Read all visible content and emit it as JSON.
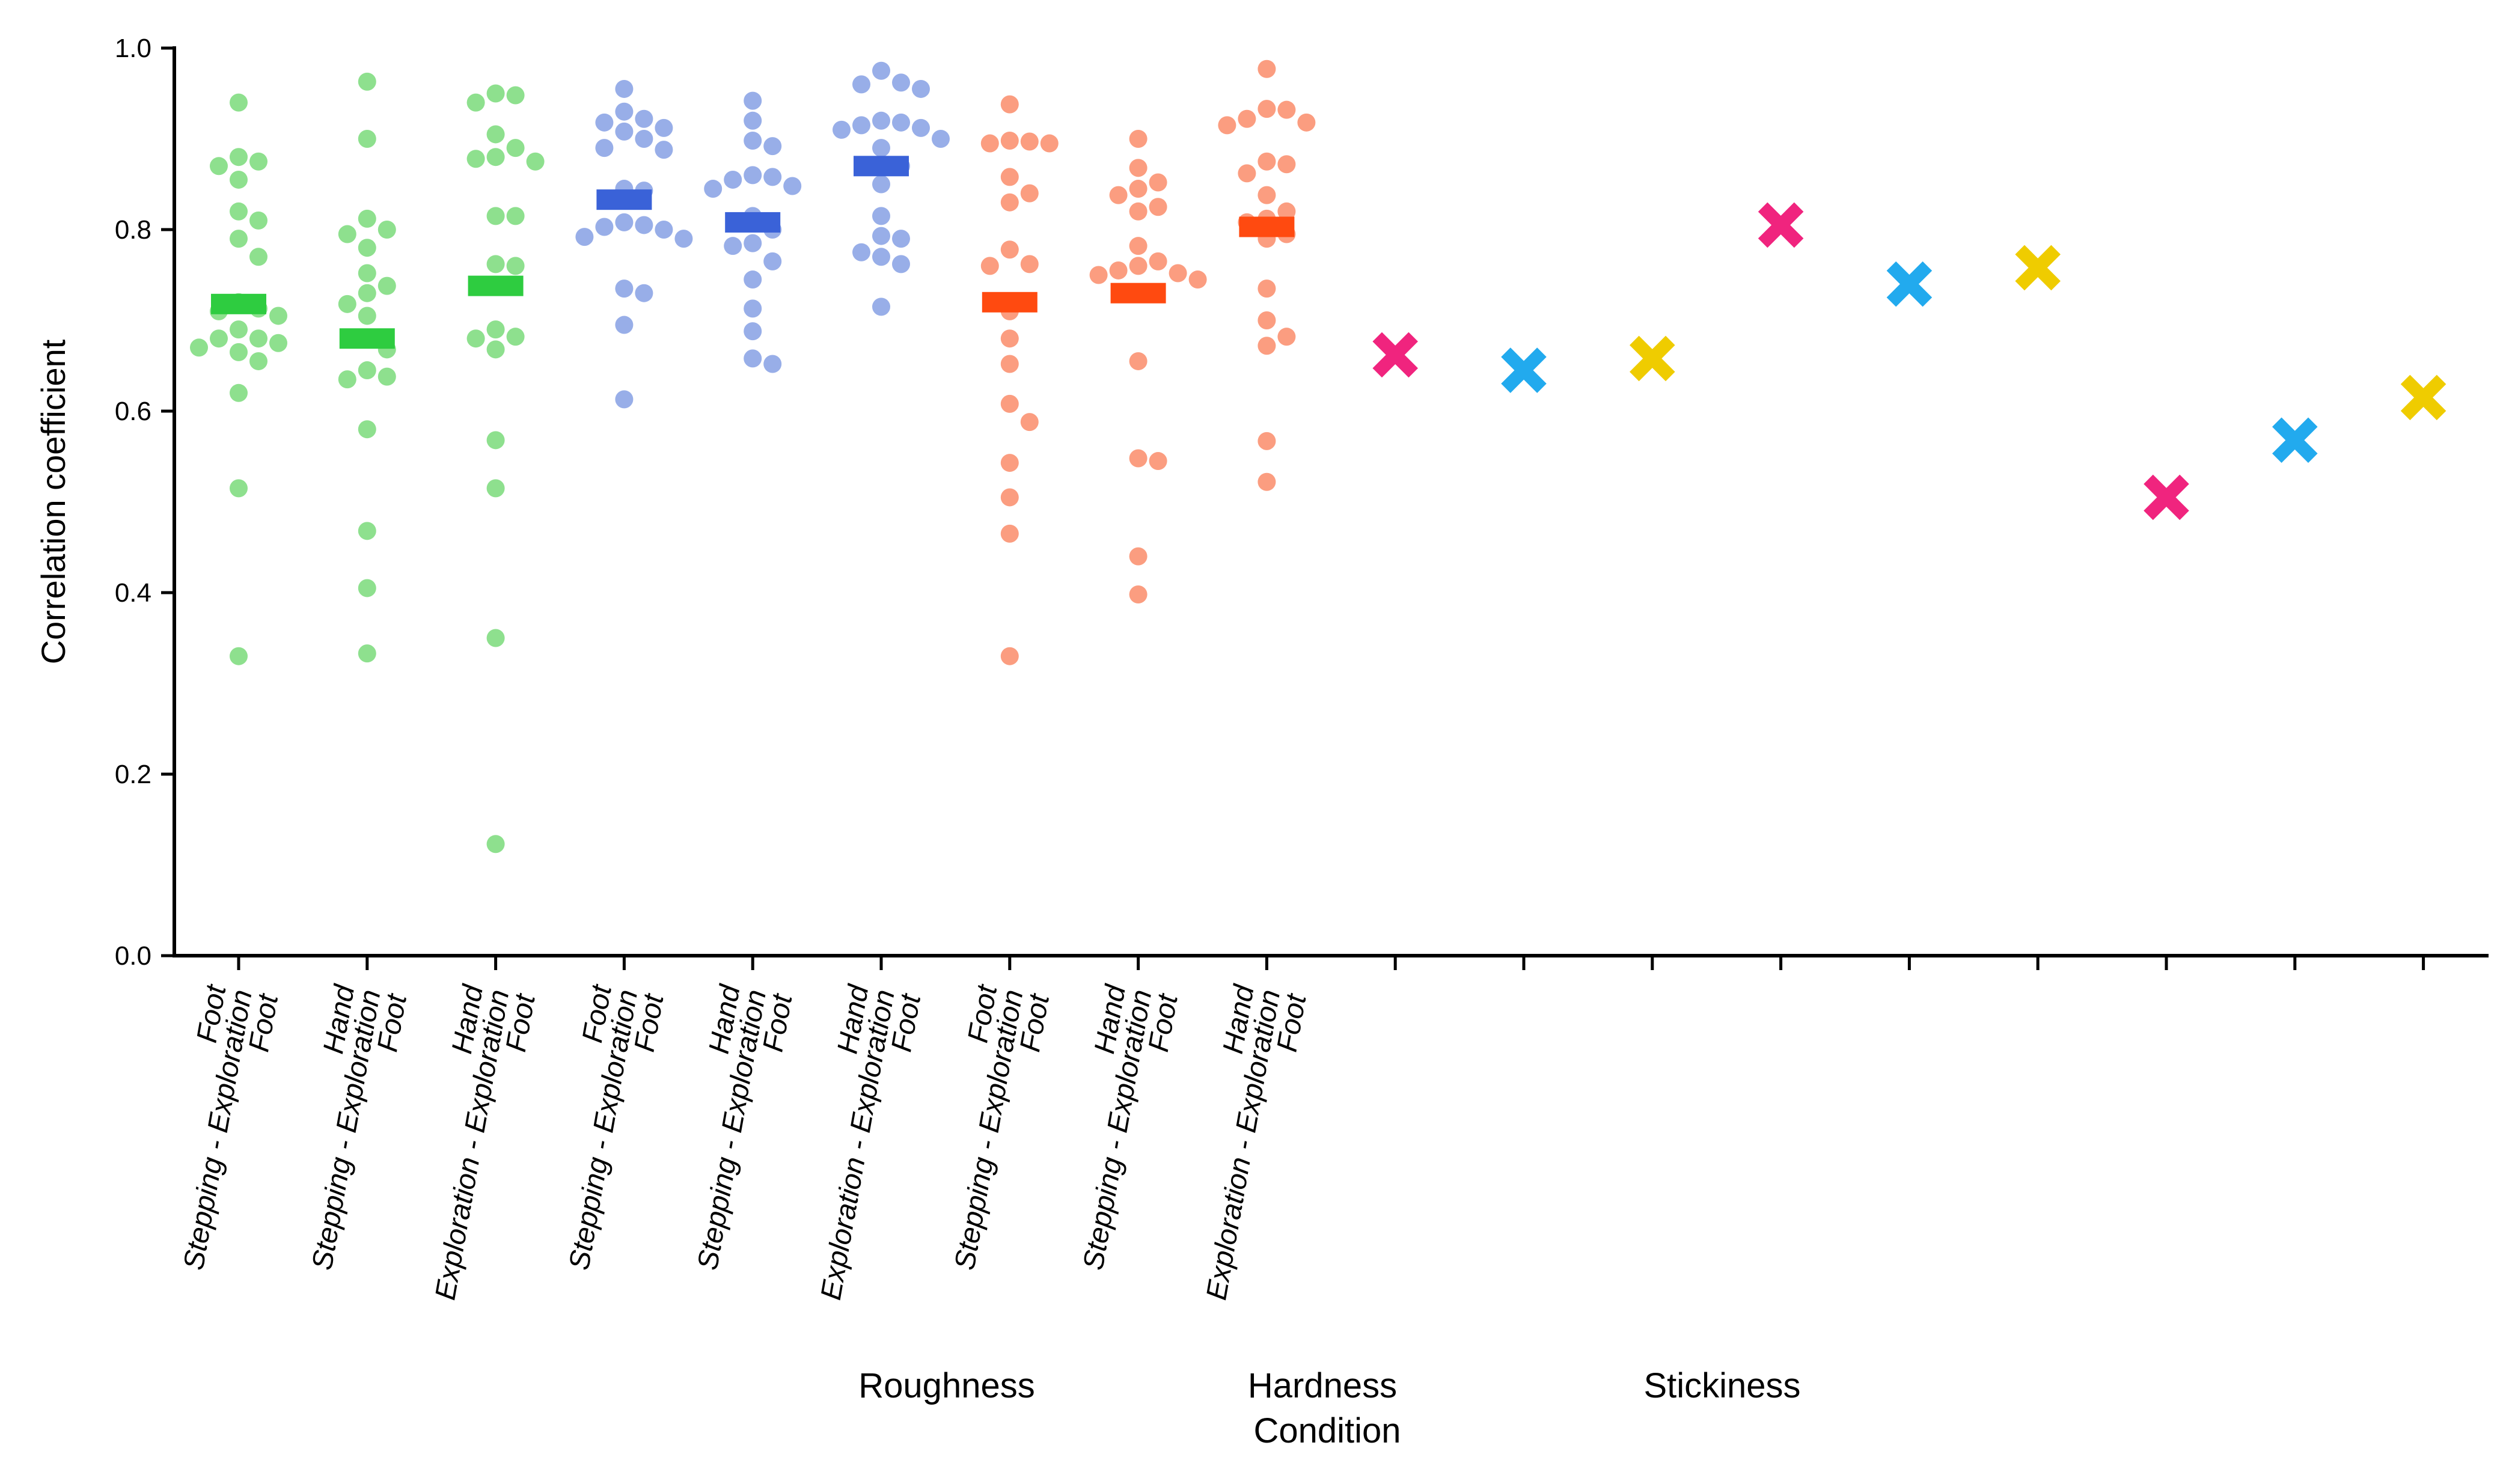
{
  "chart_data": {
    "type": "scatter",
    "ylabel": "Correlation coefficient",
    "ylim": [
      0,
      1
    ],
    "yticks": [
      "0.0",
      "0.2",
      "0.4",
      "0.6",
      "0.8",
      "1.0"
    ],
    "group_labels": [
      "Roughness",
      "Hardness",
      "Stickiness"
    ],
    "condition_label": "Condition",
    "categories": [
      {
        "line1": "Foot",
        "line2": "Stepping - Exploration",
        "line3": "Foot"
      },
      {
        "line1": "Foot",
        "line2": "Stepping - Exploration",
        "line3": "Hand"
      },
      {
        "line1": "Foot",
        "line2": "Exploration - Exploration",
        "line3": "Hand"
      },
      {
        "line1": "Foot",
        "line2": "Stepping - Exploration",
        "line3": "Foot"
      },
      {
        "line1": "Foot",
        "line2": "Stepping - Exploration",
        "line3": "Hand"
      },
      {
        "line1": "Foot",
        "line2": "Exploration - Exploration",
        "line3": "Hand"
      },
      {
        "line1": "Foot",
        "line2": "Stepping - Exploration",
        "line3": "Foot"
      },
      {
        "line1": "Foot",
        "line2": "Stepping - Exploration",
        "line3": "Hand"
      },
      {
        "line1": "Foot",
        "line2": "Exploration - Exploration",
        "line3": "Hand"
      },
      {},
      {},
      {},
      {},
      {},
      {},
      {},
      {},
      {}
    ],
    "colors": {
      "green_point": "#8ee08e",
      "green_mean": "#2ecc40",
      "blue_point": "#98aee8",
      "blue_mean": "#3a62d8",
      "orange_point": "#fb9d80",
      "orange_mean": "#ff4a10",
      "magenta": "#f0247e",
      "cyan": "#22aaee",
      "yellow": "#efcc00"
    },
    "swarm_series": [
      {
        "position": 1,
        "color": "green",
        "mean": 0.718,
        "values": [
          0.94,
          0.88,
          0.875,
          0.87,
          0.855,
          0.82,
          0.81,
          0.79,
          0.77,
          0.72,
          0.713,
          0.71,
          0.705,
          0.69,
          0.68,
          0.68,
          0.675,
          0.67,
          0.665,
          0.655,
          0.62,
          0.515,
          0.33
        ]
      },
      {
        "position": 2,
        "color": "green",
        "mean": 0.68,
        "values": [
          0.963,
          0.9,
          0.812,
          0.8,
          0.795,
          0.78,
          0.752,
          0.738,
          0.73,
          0.718,
          0.705,
          0.68,
          0.668,
          0.645,
          0.638,
          0.635,
          0.58,
          0.468,
          0.405,
          0.333
        ]
      },
      {
        "position": 3,
        "color": "green",
        "mean": 0.738,
        "values": [
          0.95,
          0.948,
          0.94,
          0.905,
          0.89,
          0.88,
          0.878,
          0.875,
          0.815,
          0.815,
          0.762,
          0.76,
          0.69,
          0.682,
          0.68,
          0.668,
          0.568,
          0.515,
          0.35,
          0.123
        ]
      },
      {
        "position": 4,
        "color": "blue",
        "mean": 0.833,
        "values": [
          0.955,
          0.93,
          0.922,
          0.918,
          0.912,
          0.908,
          0.9,
          0.89,
          0.888,
          0.845,
          0.843,
          0.808,
          0.805,
          0.803,
          0.8,
          0.792,
          0.79,
          0.735,
          0.73,
          0.695,
          0.613
        ]
      },
      {
        "position": 5,
        "color": "blue",
        "mean": 0.808,
        "values": [
          0.942,
          0.92,
          0.898,
          0.892,
          0.86,
          0.858,
          0.855,
          0.848,
          0.845,
          0.815,
          0.8,
          0.785,
          0.782,
          0.765,
          0.745,
          0.713,
          0.688,
          0.658,
          0.652
        ]
      },
      {
        "position": 6,
        "color": "blue",
        "mean": 0.87,
        "values": [
          0.975,
          0.962,
          0.96,
          0.955,
          0.92,
          0.918,
          0.915,
          0.912,
          0.91,
          0.9,
          0.89,
          0.87,
          0.85,
          0.815,
          0.793,
          0.79,
          0.775,
          0.77,
          0.762,
          0.715
        ]
      },
      {
        "position": 7,
        "color": "orange",
        "mean": 0.72,
        "values": [
          0.938,
          0.898,
          0.897,
          0.895,
          0.895,
          0.858,
          0.84,
          0.83,
          0.778,
          0.762,
          0.76,
          0.71,
          0.68,
          0.652,
          0.608,
          0.588,
          0.543,
          0.505,
          0.465,
          0.33
        ]
      },
      {
        "position": 8,
        "color": "orange",
        "mean": 0.73,
        "values": [
          0.9,
          0.868,
          0.852,
          0.845,
          0.838,
          0.825,
          0.82,
          0.782,
          0.765,
          0.76,
          0.755,
          0.752,
          0.75,
          0.745,
          0.655,
          0.548,
          0.545,
          0.44,
          0.398
        ]
      },
      {
        "position": 9,
        "color": "orange",
        "mean": 0.803,
        "values": [
          0.977,
          0.933,
          0.932,
          0.922,
          0.918,
          0.915,
          0.875,
          0.872,
          0.862,
          0.838,
          0.82,
          0.812,
          0.808,
          0.795,
          0.79,
          0.735,
          0.7,
          0.682,
          0.672,
          0.567,
          0.522
        ]
      }
    ],
    "marker_series": [
      {
        "position": 10,
        "color": "magenta",
        "value": 0.662
      },
      {
        "position": 11,
        "color": "cyan",
        "value": 0.645
      },
      {
        "position": 12,
        "color": "yellow",
        "value": 0.658
      },
      {
        "position": 13,
        "color": "magenta",
        "value": 0.805
      },
      {
        "position": 14,
        "color": "cyan",
        "value": 0.74
      },
      {
        "position": 15,
        "color": "yellow",
        "value": 0.758
      },
      {
        "position": 16,
        "color": "magenta",
        "value": 0.505
      },
      {
        "position": 17,
        "color": "cyan",
        "value": 0.568
      },
      {
        "position": 18,
        "color": "yellow",
        "value": 0.615
      }
    ]
  }
}
